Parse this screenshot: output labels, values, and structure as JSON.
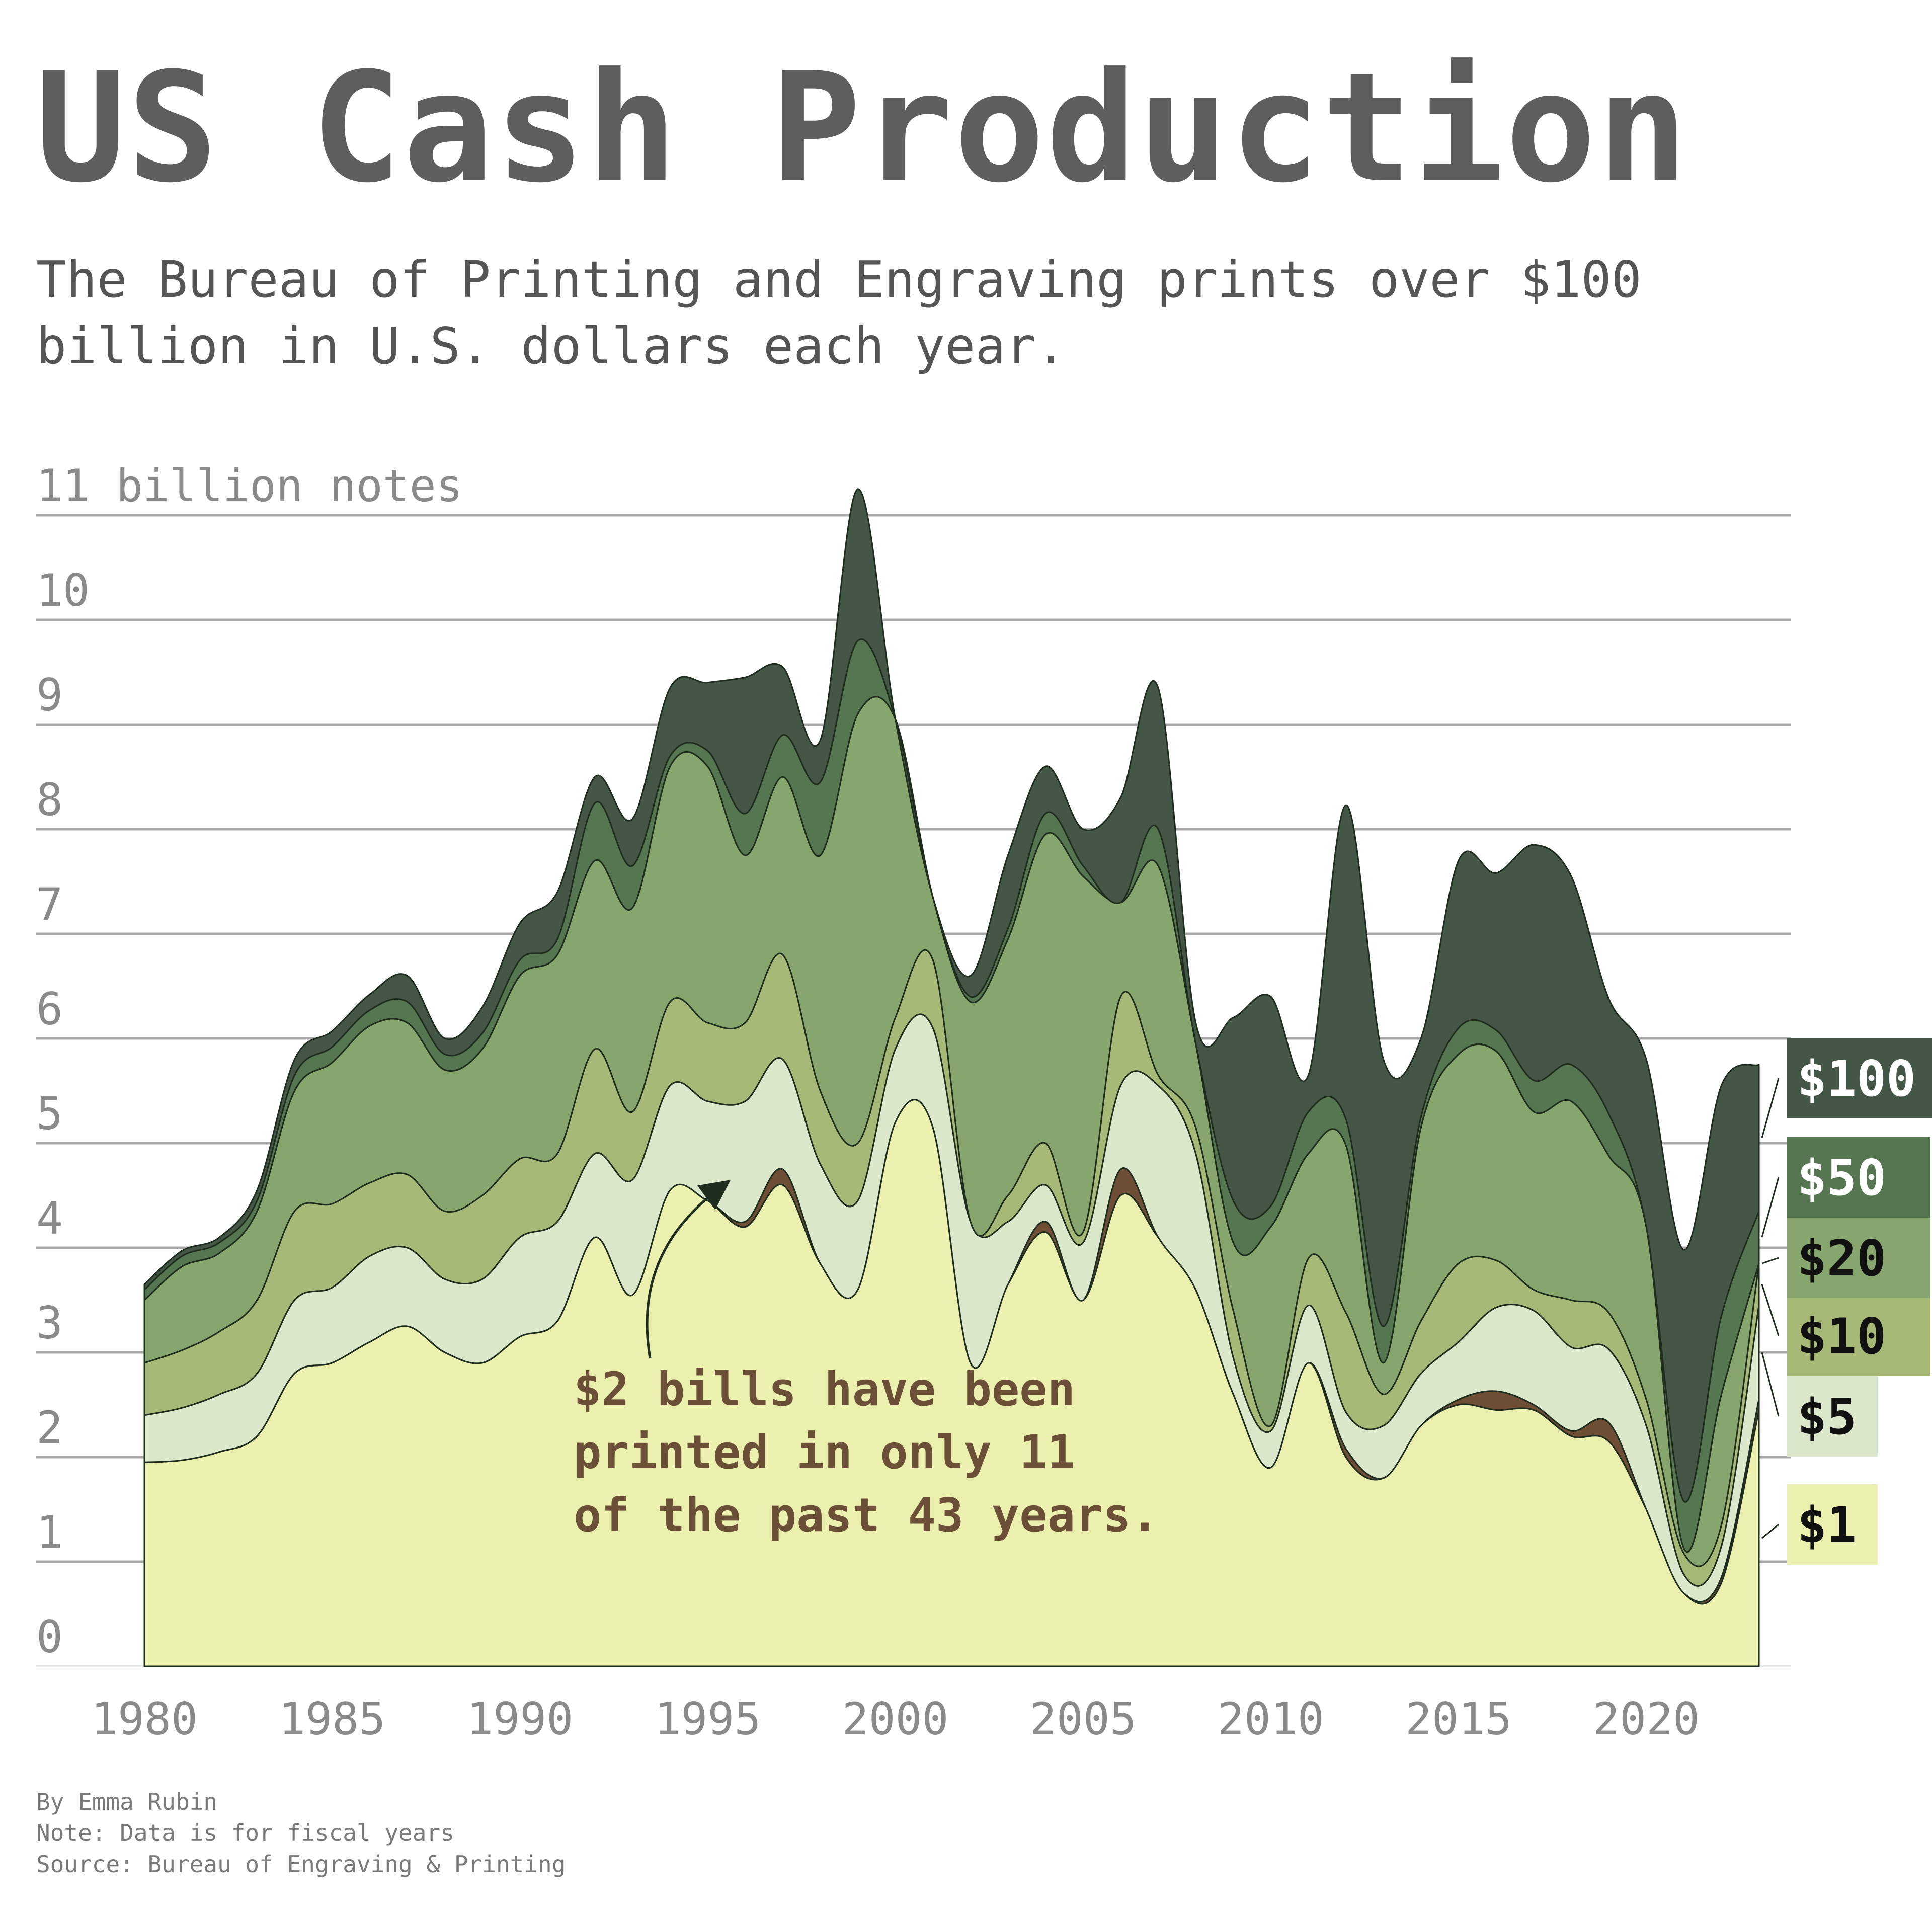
{
  "title": "US Cash Production",
  "subtitle": "The Bureau of Printing and Engraving prints over $100\nbillion in U.S. dollars each year.",
  "footer": {
    "byline": "By Emma Rubin",
    "note": "Note: Data is for fiscal years",
    "source": "Source: Bureau of Engraving & Printing"
  },
  "annotation": {
    "lines": [
      "$2 bills have been",
      "printed in only 11",
      "of the past 43 years."
    ],
    "color": "#6b4f36"
  },
  "chart_data": {
    "type": "area",
    "stacked": true,
    "curve": "smooth",
    "y_axis_title": "billion notes",
    "ylim": [
      0,
      11
    ],
    "y_ticks": [
      0,
      1,
      2,
      3,
      4,
      5,
      6,
      7,
      8,
      9,
      10,
      11
    ],
    "y_tick_labels": [
      "0",
      "1",
      "2",
      "3",
      "4",
      "5",
      "6",
      "7",
      "8",
      "9",
      "10",
      "11 billion notes"
    ],
    "xlim": [
      1980,
      2023
    ],
    "x_ticks": [
      1980,
      1985,
      1990,
      1995,
      2000,
      2005,
      2010,
      2015,
      2020
    ],
    "x_tick_labels": [
      "1980",
      "1985",
      "1990",
      "1995",
      "2000",
      "2005",
      "2010",
      "2015",
      "2020"
    ],
    "grid": "horizontal",
    "legend": "right, end of series",
    "x": [
      1980,
      1981,
      1982,
      1983,
      1984,
      1985,
      1986,
      1987,
      1988,
      1989,
      1990,
      1991,
      1992,
      1993,
      1994,
      1995,
      1996,
      1997,
      1998,
      1999,
      2000,
      2001,
      2002,
      2003,
      2004,
      2005,
      2006,
      2007,
      2008,
      2009,
      2010,
      2011,
      2012,
      2013,
      2014,
      2015,
      2016,
      2017,
      2018,
      2019,
      2020,
      2021,
      2022,
      2023
    ],
    "series": [
      {
        "name": "$1",
        "color": "#ebf0ae",
        "label_bg": "#ebf0ae",
        "label_color": "#111111",
        "values": [
          1.95,
          1.97,
          2.05,
          2.2,
          2.8,
          2.9,
          3.1,
          3.25,
          3.0,
          2.9,
          3.15,
          3.3,
          4.1,
          3.55,
          4.55,
          4.45,
          4.2,
          4.6,
          3.85,
          3.6,
          5.2,
          5.15,
          2.9,
          3.65,
          4.15,
          3.5,
          4.5,
          4.1,
          3.6,
          2.6,
          1.9,
          2.9,
          2.0,
          1.8,
          2.3,
          2.5,
          2.45,
          2.45,
          2.2,
          2.15,
          1.5,
          0.7,
          0.8,
          2.45
        ]
      },
      {
        "name": "$2",
        "color": "#6e4e35",
        "label_bg": "#6e4e35",
        "label_color": "#ffffff",
        "values": [
          0,
          0,
          0,
          0,
          0,
          0,
          0,
          0,
          0,
          0,
          0,
          0,
          0,
          0,
          0,
          0,
          0.05,
          0.15,
          0,
          0,
          0,
          0,
          0,
          0,
          0.1,
          0,
          0.25,
          0,
          0,
          0,
          0,
          0,
          0.08,
          0,
          0,
          0.05,
          0.18,
          0.05,
          0.05,
          0.18,
          0,
          0,
          0.05,
          0.1
        ]
      },
      {
        "name": "$5",
        "color": "#dce8cc",
        "label_bg": "#dce8cc",
        "label_color": "#111111",
        "values": [
          0.45,
          0.5,
          0.55,
          0.6,
          0.7,
          0.72,
          0.82,
          0.75,
          0.7,
          0.8,
          0.95,
          0.95,
          0.8,
          1.1,
          1.0,
          0.95,
          1.15,
          1.05,
          0.95,
          0.85,
          0.7,
          0.95,
          1.35,
          0.6,
          0.35,
          0.55,
          0.8,
          1.45,
          1.3,
          0.35,
          0.35,
          0.55,
          0.35,
          0.5,
          0.5,
          0.55,
          0.8,
          0.9,
          0.8,
          0.7,
          0.8,
          0.18,
          0.3,
          0.9
        ]
      },
      {
        "name": "$10",
        "color": "#a6b976",
        "label_bg": "#a6b976",
        "label_color": "#111111",
        "values": [
          0.5,
          0.55,
          0.6,
          0.7,
          0.85,
          0.8,
          0.7,
          0.7,
          0.65,
          0.8,
          0.75,
          0.65,
          1.0,
          0.65,
          0.8,
          0.75,
          0.75,
          1.0,
          0.7,
          0.55,
          0.3,
          0.65,
          0.0,
          0.25,
          0.4,
          0.1,
          0.85,
          0.1,
          0.25,
          0.45,
          0.05,
          0.45,
          0.95,
          0.3,
          0.5,
          0.75,
          0.45,
          0.2,
          0.45,
          0.35,
          0.25,
          0.2,
          0.2,
          0.4
        ]
      },
      {
        "name": "$20",
        "color": "#87a66d",
        "label_bg": "#87a66d",
        "label_color": "#111111",
        "values": [
          0.6,
          0.8,
          0.75,
          0.85,
          1.15,
          1.35,
          1.5,
          1.45,
          1.35,
          1.4,
          1.75,
          1.9,
          1.8,
          1.95,
          2.25,
          2.45,
          1.6,
          1.7,
          2.25,
          4.1,
          2.85,
          0.6,
          2.1,
          2.45,
          2.95,
          3.4,
          0.9,
          2.0,
          0.8,
          0.65,
          1.9,
          1.0,
          1.6,
          0.3,
          1.85,
          2.0,
          2.0,
          1.7,
          1.9,
          1.5,
          1.65,
          0.05,
          1.25,
          0.0
        ]
      },
      {
        "name": "$50",
        "color": "#557650",
        "label_bg": "#557650",
        "label_color": "#ffffff",
        "values": [
          0.1,
          0.1,
          0.1,
          0.1,
          0.15,
          0.15,
          0.15,
          0.2,
          0.15,
          0.15,
          0.15,
          0.15,
          0.55,
          0.4,
          0.1,
          0.15,
          0.4,
          0.4,
          0.7,
          0.7,
          0.0,
          0.0,
          0.05,
          0.1,
          0.2,
          0.1,
          0.0,
          0.35,
          0.0,
          0.4,
          0.2,
          0.4,
          0.25,
          0.35,
          0.1,
          0.25,
          0.2,
          0.3,
          0.35,
          0.4,
          0.0,
          0.45,
          0.75,
          0.5
        ]
      },
      {
        "name": "$100",
        "color": "#445645",
        "label_bg": "#445645",
        "label_color": "#ffffff",
        "values": [
          0.05,
          0.05,
          0.05,
          0.1,
          0.15,
          0.15,
          0.15,
          0.25,
          0.15,
          0.25,
          0.35,
          0.45,
          0.25,
          0.45,
          0.65,
          0.65,
          1.3,
          0.65,
          0.4,
          1.45,
          0.0,
          0.0,
          0.2,
          0.7,
          0.45,
          0.35,
          1.0,
          1.35,
          0.2,
          1.75,
          2.0,
          0.35,
          3.0,
          2.55,
          0.75,
          1.6,
          1.5,
          2.25,
          1.8,
          1.1,
          1.6,
          2.4,
          2.2,
          1.4
        ]
      }
    ]
  }
}
